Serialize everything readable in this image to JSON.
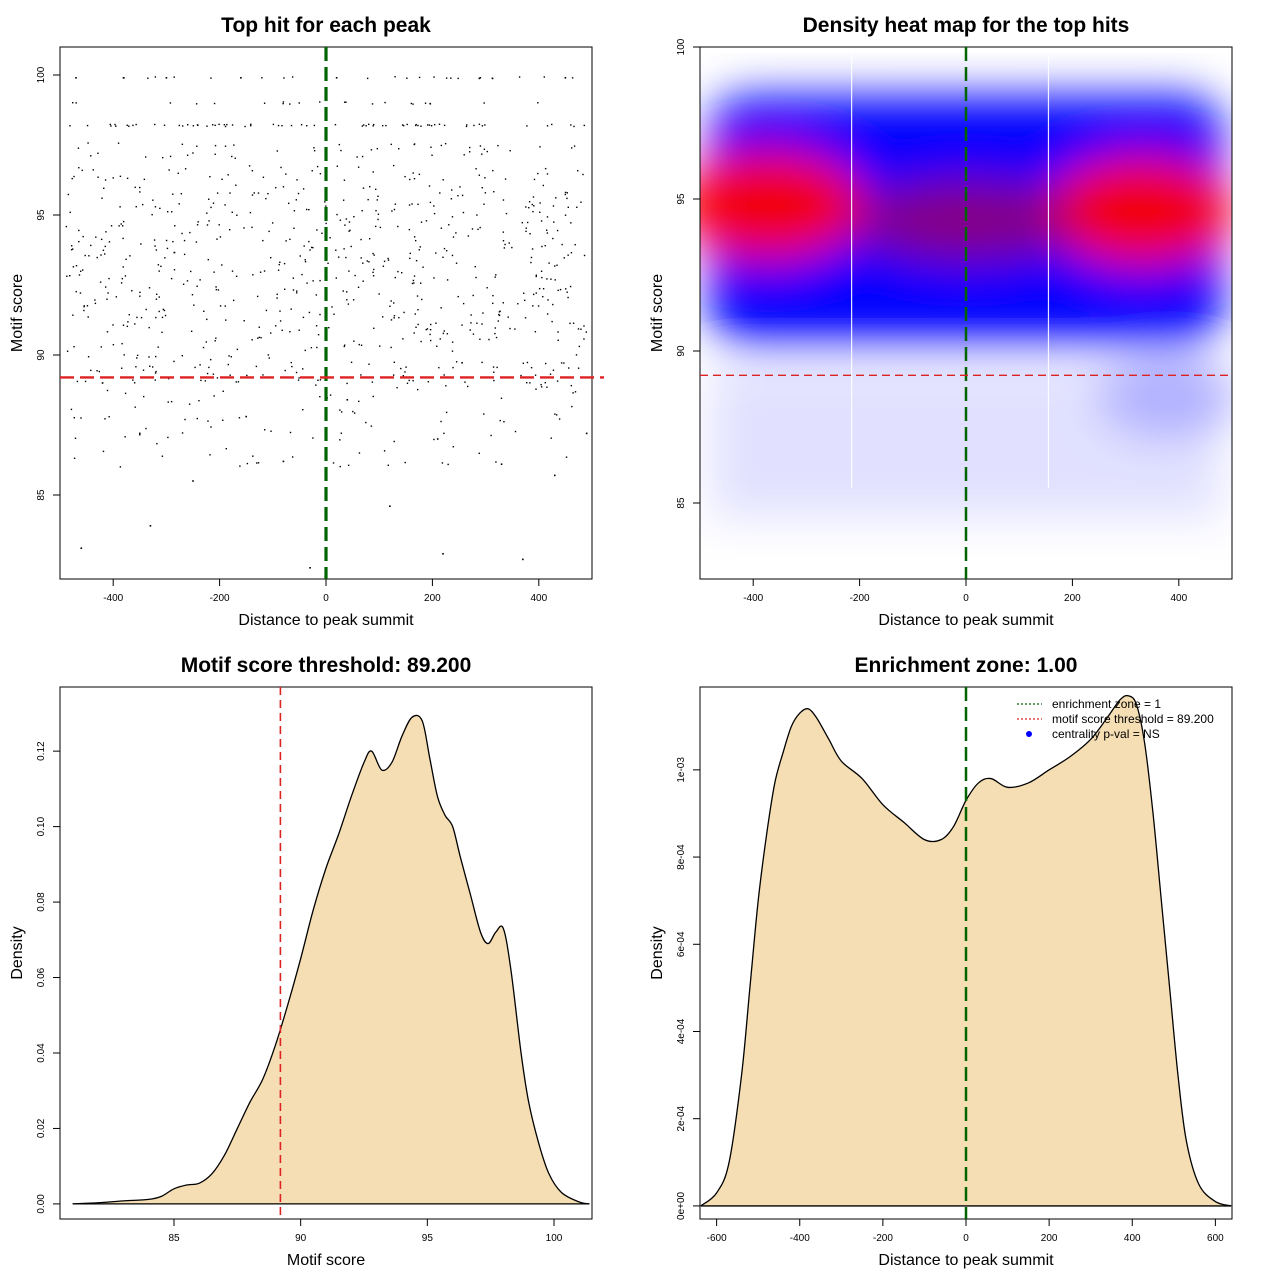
{
  "chart_data": [
    {
      "type": "scatter",
      "title": "Top hit for each peak",
      "xlabel": "Distance to peak summit",
      "ylabel": "Motif score",
      "xlim": [
        -500,
        500
      ],
      "ylim": [
        82,
        101
      ],
      "xticks": [
        -400,
        -200,
        0,
        200,
        400
      ],
      "yticks": [
        85,
        90,
        95,
        100
      ],
      "point_color": "#000000",
      "reference_lines": [
        {
          "orientation": "vertical",
          "value": 0,
          "color": "#006400",
          "style": "dashed"
        },
        {
          "orientation": "horizontal",
          "value": 89.2,
          "color": "#dd2222",
          "style": "dashed"
        }
      ],
      "sample_points": [
        [
          -470,
          99.9
        ],
        [
          -380,
          99.9
        ],
        [
          -300,
          99.9
        ],
        [
          -160,
          99.9
        ],
        [
          20,
          99.9
        ],
        [
          290,
          99.9
        ],
        [
          450,
          99.9
        ],
        [
          -420,
          89.0
        ],
        [
          -350,
          87.2
        ],
        [
          -250,
          85.5
        ],
        [
          -150,
          87.8
        ],
        [
          -80,
          86.2
        ],
        [
          40,
          88.4
        ],
        [
          120,
          84.6
        ],
        [
          210,
          87.0
        ],
        [
          330,
          86.1
        ],
        [
          430,
          85.7
        ],
        [
          -460,
          83.1
        ],
        [
          -330,
          83.9
        ],
        [
          -30,
          82.4
        ],
        [
          220,
          82.9
        ],
        [
          370,
          82.7
        ],
        [
          490,
          87.2
        ]
      ],
      "score_rows": [
        99.9,
        99.0,
        98.2,
        97.3,
        96.5,
        95.8,
        95.2,
        94.6,
        94.0,
        93.4,
        92.8,
        92.2,
        91.6,
        91.0,
        90.4,
        89.8,
        89.3
      ]
    },
    {
      "type": "heatmap",
      "title": "Density heat map for the top hits",
      "xlabel": "Distance to peak summit",
      "ylabel": "Motif score",
      "xlim": [
        -500,
        500
      ],
      "ylim": [
        82.5,
        100
      ],
      "xticks": [
        -400,
        -200,
        0,
        200,
        400
      ],
      "yticks": [
        85,
        90,
        95,
        100
      ],
      "colors": {
        "low": "#ffffff",
        "mid": "#0000ff",
        "high": "#ff0000"
      },
      "high_density_regions": [
        {
          "x": -370,
          "y": 94.8,
          "level": "high"
        },
        {
          "x": 330,
          "y": 94.6,
          "level": "high"
        },
        {
          "x": 0,
          "y": 94.3,
          "level": "medium"
        }
      ],
      "white_vertical_lines": [
        -215,
        155
      ],
      "reference_lines": [
        {
          "orientation": "vertical",
          "value": 0,
          "color": "#006400",
          "style": "dashed"
        },
        {
          "orientation": "horizontal",
          "value": 89.2,
          "color": "#dd2222",
          "style": "dashed"
        }
      ]
    },
    {
      "type": "area",
      "title": "Motif score threshold: 89.200",
      "xlabel": "Motif score",
      "ylabel": "Density",
      "xlim": [
        80.5,
        101.5
      ],
      "ylim": [
        -0.004,
        0.137
      ],
      "xticks": [
        85,
        90,
        95,
        100
      ],
      "yticks": [
        0.0,
        0.02,
        0.04,
        0.06,
        0.08,
        0.1,
        0.12
      ],
      "ytick_labels": [
        "0.00",
        "0.02",
        "0.04",
        "0.06",
        "0.08",
        "0.10",
        "0.12"
      ],
      "fill_color": "#f5deb3",
      "x": [
        81,
        82,
        83,
        84,
        84.5,
        85,
        85.5,
        86,
        86.5,
        87,
        87.5,
        88,
        88.5,
        89,
        89.5,
        90,
        90.5,
        91,
        91.5,
        92,
        92.5,
        92.8,
        93.2,
        93.6,
        94,
        94.4,
        94.8,
        95.1,
        95.4,
        95.7,
        96,
        96.3,
        96.7,
        97.1,
        97.4,
        97.7,
        98,
        98.3,
        98.7,
        99,
        99.4,
        99.8,
        100.3,
        101,
        101.4
      ],
      "y": [
        0.0,
        0.0003,
        0.0008,
        0.0012,
        0.002,
        0.004,
        0.005,
        0.0055,
        0.008,
        0.013,
        0.02,
        0.027,
        0.033,
        0.042,
        0.053,
        0.065,
        0.078,
        0.089,
        0.098,
        0.108,
        0.117,
        0.12,
        0.115,
        0.117,
        0.124,
        0.129,
        0.128,
        0.118,
        0.108,
        0.103,
        0.1,
        0.092,
        0.082,
        0.072,
        0.069,
        0.072,
        0.073,
        0.062,
        0.04,
        0.027,
        0.016,
        0.008,
        0.003,
        0.0005,
        0.0
      ],
      "reference_lines": [
        {
          "orientation": "vertical",
          "value": 89.2,
          "color": "#dd2222",
          "style": "dashed"
        }
      ]
    },
    {
      "type": "area",
      "title": "Enrichment zone: 1.00",
      "xlabel": "Distance to peak summit",
      "ylabel": "Density",
      "xlim": [
        -640,
        640
      ],
      "ylim": [
        -3e-05,
        0.00119
      ],
      "xticks": [
        -600,
        -400,
        -200,
        0,
        200,
        400,
        600
      ],
      "yticks": [
        0,
        0.0002,
        0.0004,
        0.0006,
        0.0008,
        0.001
      ],
      "ytick_labels": [
        "0e+00",
        "2e-04",
        "4e-04",
        "6e-04",
        "8e-04",
        "1e-03"
      ],
      "fill_color": "#f5deb3",
      "x": [
        -638,
        -600,
        -570,
        -540,
        -520,
        -500,
        -480,
        -460,
        -440,
        -420,
        -400,
        -380,
        -360,
        -330,
        -300,
        -250,
        -200,
        -150,
        -100,
        -60,
        -30,
        0,
        30,
        60,
        100,
        150,
        200,
        250,
        300,
        340,
        370,
        390,
        410,
        430,
        450,
        470,
        490,
        510,
        530,
        560,
        600,
        638
      ],
      "y": [
        0.0,
        3e-05,
        0.0001,
        0.0003,
        0.0005,
        0.0007,
        0.00085,
        0.00097,
        0.00104,
        0.0011,
        0.00113,
        0.00114,
        0.00112,
        0.00107,
        0.00102,
        0.00098,
        0.00092,
        0.00088,
        0.00084,
        0.00084,
        0.00087,
        0.00093,
        0.00097,
        0.00098,
        0.00096,
        0.00097,
        0.001,
        0.00103,
        0.00107,
        0.00112,
        0.00116,
        0.00117,
        0.00115,
        0.00106,
        0.0009,
        0.0007,
        0.0005,
        0.0003,
        0.00015,
        5e-05,
        1e-05,
        0.0
      ],
      "reference_lines": [
        {
          "orientation": "vertical",
          "value": 0,
          "color": "#006400",
          "style": "dashed"
        }
      ],
      "legend": {
        "placement": "top-right",
        "entries": [
          {
            "label": "enrichment zone = 1",
            "color": "#006400",
            "symbol": "dotted-line"
          },
          {
            "label": "motif score threshold = 89.200",
            "color": "#dd2222",
            "symbol": "dotted-line"
          },
          {
            "label": "centrality p-val = NS",
            "color": "#0000ff",
            "symbol": "dot"
          }
        ]
      }
    }
  ]
}
